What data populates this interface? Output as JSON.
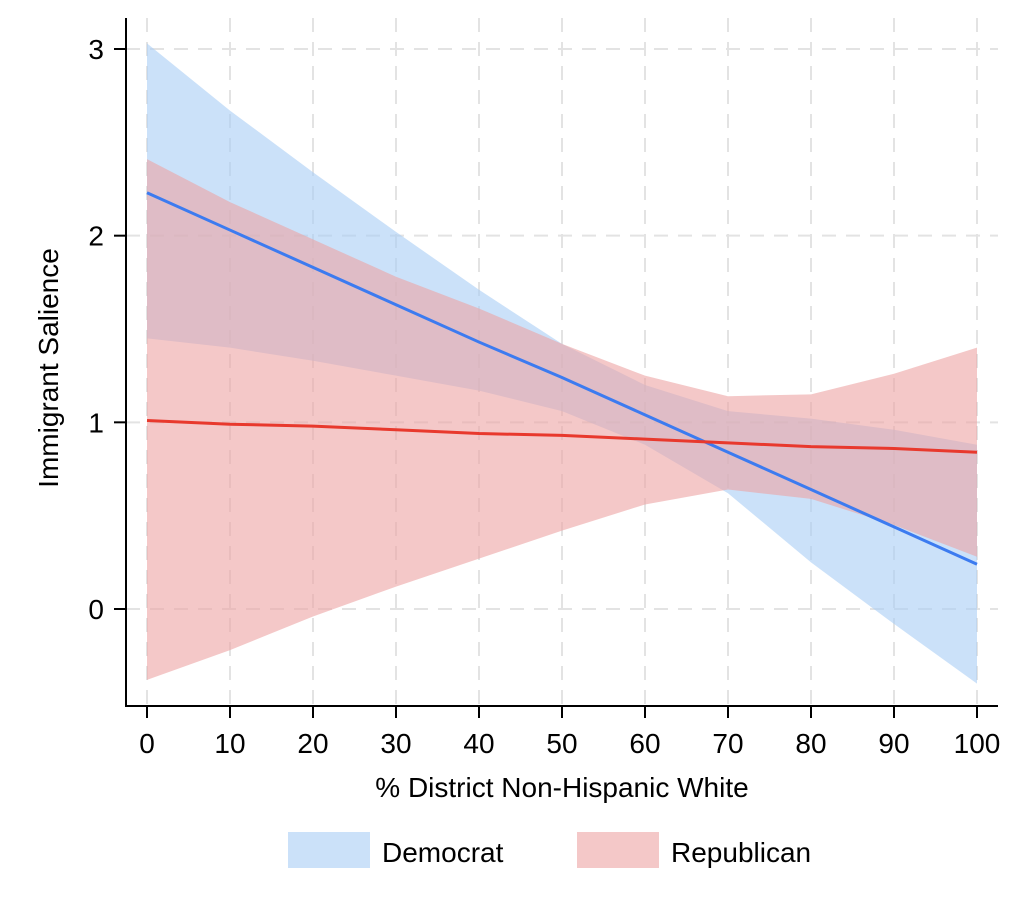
{
  "chart_data": {
    "type": "line",
    "title": "",
    "xlabel": "% District Non-Hispanic White",
    "ylabel": "Immigrant Salience",
    "xlim": [
      0,
      100
    ],
    "ylim": [
      -0.52,
      3.1
    ],
    "xticks": [
      0,
      10,
      20,
      30,
      40,
      50,
      60,
      70,
      80,
      90,
      100
    ],
    "yticks": [
      0,
      1,
      2,
      3
    ],
    "x_tick_labels": [
      "0",
      "10",
      "20",
      "30",
      "40",
      "50",
      "60",
      "70",
      "80",
      "90",
      "100"
    ],
    "y_tick_labels": [
      "0",
      "1",
      "2",
      "3"
    ],
    "grid": true,
    "legend_position": "bottom",
    "series": [
      {
        "name": "Democrat",
        "line_color": "#3c7bf0",
        "band_color": "#a9cdf5",
        "x": [
          0,
          10,
          20,
          30,
          40,
          50,
          60,
          70,
          80,
          90,
          100
        ],
        "values": [
          2.23,
          2.03,
          1.83,
          1.63,
          1.43,
          1.24,
          1.04,
          0.84,
          0.64,
          0.44,
          0.24
        ],
        "lower": [
          1.45,
          1.4,
          1.33,
          1.25,
          1.17,
          1.06,
          0.88,
          0.62,
          0.25,
          -0.08,
          -0.4
        ],
        "upper": [
          3.03,
          2.67,
          2.34,
          2.02,
          1.71,
          1.42,
          1.2,
          1.06,
          1.02,
          0.96,
          0.88
        ]
      },
      {
        "name": "Republican",
        "line_color": "#e8392d",
        "band_color": "#eda4a4",
        "x": [
          0,
          10,
          20,
          30,
          40,
          50,
          60,
          70,
          80,
          90,
          100
        ],
        "values": [
          1.01,
          0.99,
          0.98,
          0.96,
          0.94,
          0.93,
          0.91,
          0.89,
          0.87,
          0.86,
          0.84
        ],
        "lower": [
          -0.38,
          -0.22,
          -0.04,
          0.12,
          0.27,
          0.42,
          0.56,
          0.64,
          0.59,
          0.45,
          0.28
        ],
        "upper": [
          2.41,
          2.18,
          1.98,
          1.78,
          1.61,
          1.42,
          1.25,
          1.14,
          1.15,
          1.26,
          1.4
        ]
      }
    ]
  }
}
